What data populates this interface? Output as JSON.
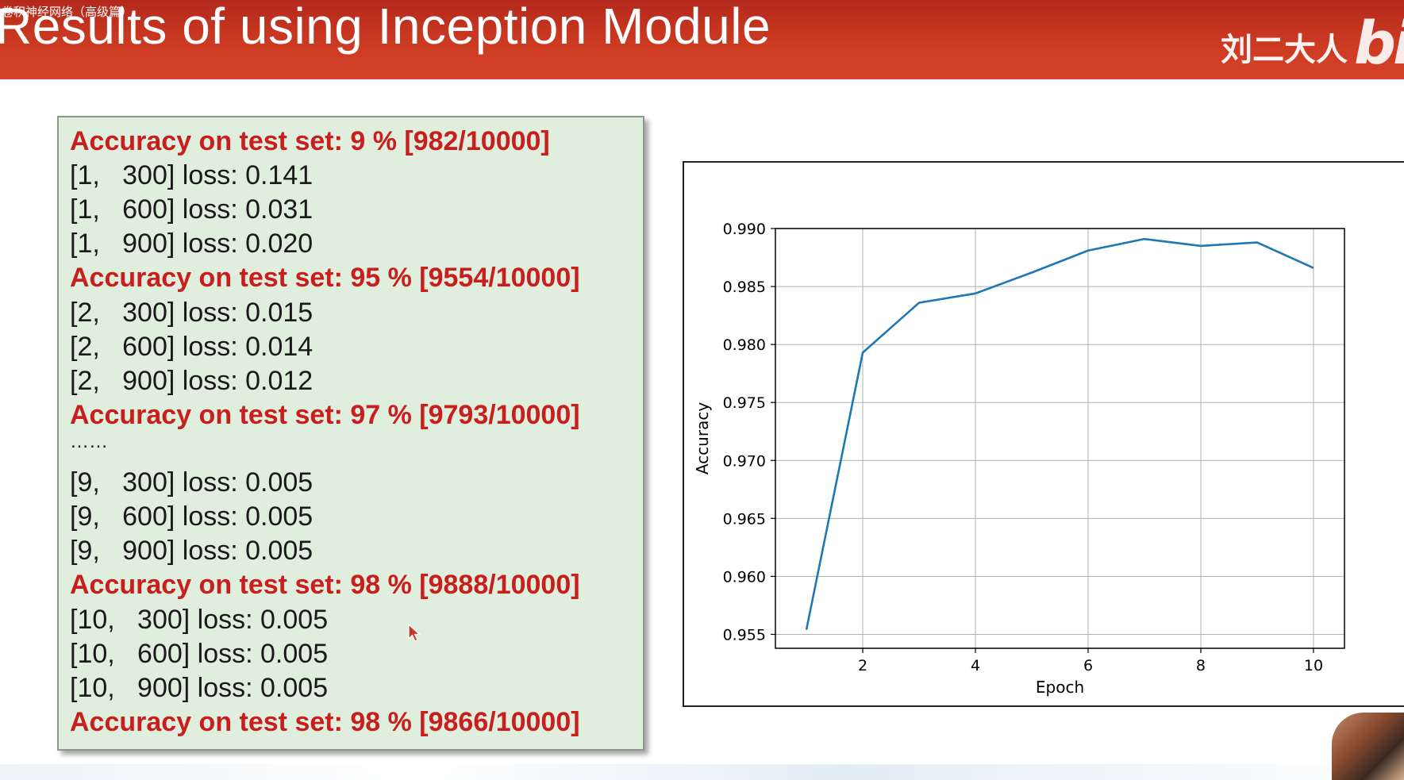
{
  "video_title": "卷积神经网络（高级篇）",
  "slide_title": "Results of using Inception Module",
  "author": "刘二大人",
  "logo_text": "bili",
  "log_lines": [
    {
      "text": "Accuracy on test set: 9 % [982/10000]",
      "type": "acc"
    },
    {
      "text": "[1,   300] loss: 0.141",
      "type": "loss"
    },
    {
      "text": "[1,   600] loss: 0.031",
      "type": "loss"
    },
    {
      "text": "[1,   900] loss: 0.020",
      "type": "loss"
    },
    {
      "text": "Accuracy on test set: 95 % [9554/10000]",
      "type": "acc"
    },
    {
      "text": "[2,   300] loss: 0.015",
      "type": "loss"
    },
    {
      "text": "[2,   600] loss: 0.014",
      "type": "loss"
    },
    {
      "text": "[2,   900] loss: 0.012",
      "type": "loss"
    },
    {
      "text": "Accuracy on test set: 97 % [9793/10000]",
      "type": "acc"
    },
    {
      "text": "……",
      "type": "ellipsis"
    },
    {
      "text": "[9,   300] loss: 0.005",
      "type": "loss"
    },
    {
      "text": "[9,   600] loss: 0.005",
      "type": "loss"
    },
    {
      "text": "[9,   900] loss: 0.005",
      "type": "loss"
    },
    {
      "text": "Accuracy on test set: 98 % [9888/10000]",
      "type": "acc"
    },
    {
      "text": "[10,   300] loss: 0.005",
      "type": "loss"
    },
    {
      "text": "[10,   600] loss: 0.005",
      "type": "loss"
    },
    {
      "text": "[10,   900] loss: 0.005",
      "type": "loss"
    },
    {
      "text": "Accuracy on test set: 98 % [9866/10000]",
      "type": "acc"
    }
  ],
  "colors": {
    "header": "#cc3a22",
    "accuracy_text": "#c81e1e",
    "loss_text": "#1a1a1a",
    "log_panel_bg": "#dfeedd",
    "line": "#1f77b4",
    "grid": "#b0b0b0"
  },
  "icons": {
    "cursor": "mouse-pointer-icon",
    "logo": "bilibili-logo-icon"
  },
  "chart_data": {
    "type": "line",
    "title": "",
    "xlabel": "Epoch",
    "ylabel": "Accuracy",
    "x": [
      1,
      2,
      3,
      4,
      5,
      6,
      7,
      8,
      9,
      10
    ],
    "series": [
      {
        "values": [
          0.9554,
          0.9793,
          0.9836,
          0.9844,
          0.9862,
          0.9881,
          0.9891,
          0.9885,
          0.9888,
          0.9866
        ]
      }
    ],
    "xlim": [
      0.45,
      10.55
    ],
    "ylim": [
      0.9538,
      0.99
    ],
    "xticks": [
      2,
      4,
      6,
      8,
      10
    ],
    "yticks": [
      0.955,
      0.96,
      0.965,
      0.97,
      0.975,
      0.98,
      0.985,
      0.99
    ],
    "xtick_labels": [
      "2",
      "4",
      "6",
      "8",
      "10"
    ],
    "ytick_labels": [
      "0.955",
      "0.960",
      "0.965",
      "0.970",
      "0.975",
      "0.980",
      "0.985",
      "0.990"
    ],
    "grid": true,
    "legend": "none"
  }
}
